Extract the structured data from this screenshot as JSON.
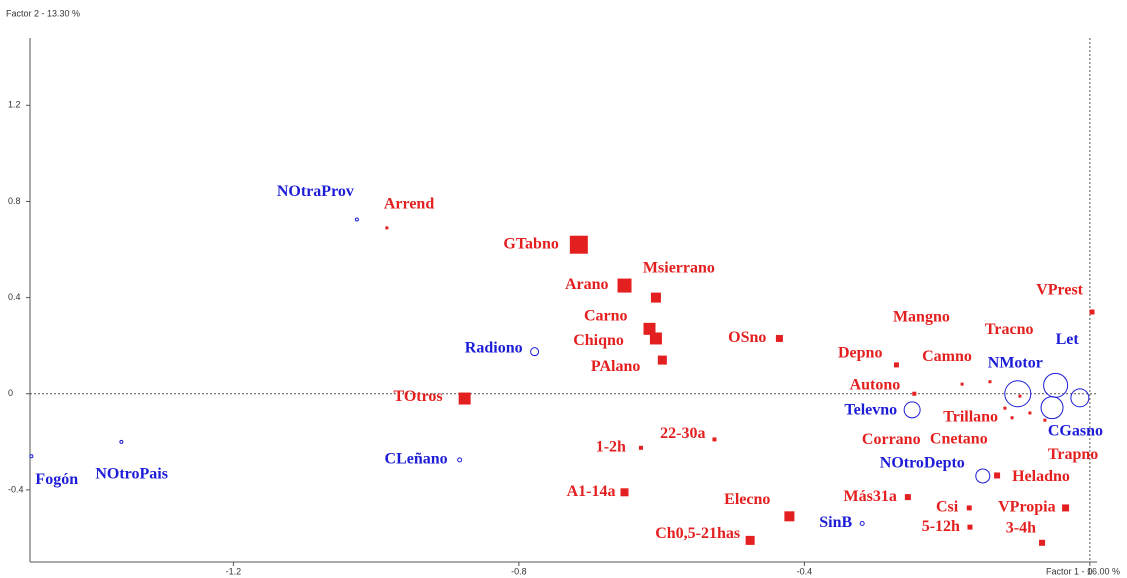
{
  "chart_data": {
    "type": "scatter",
    "xlabel": "Factor 1  -  16.00 %",
    "ylabel": "Factor 2  -  13.30 %",
    "xlim": [
      -1.485,
      0.01
    ],
    "ylim": [
      -0.7,
      1.48
    ],
    "xticks": [
      -1.2,
      -0.8,
      -0.4,
      0
    ],
    "yticks": [
      1.2,
      0.8,
      0.4,
      0,
      -0.4
    ],
    "series": [
      {
        "color": "#e41f1f",
        "marker": "square",
        "labels": [
          "Arrend",
          "GTabno",
          "Arano",
          "Msierrano",
          "Carno",
          "Chiqno",
          "PAlano",
          "OSno",
          "TOtros",
          "Depno",
          "Mangno",
          "Camno",
          "Tracno",
          "Trillano",
          "Cnetano",
          "Autono",
          "VPrest",
          "Corrano",
          "Trapno",
          "Heladno",
          "22-30a",
          "1-2h",
          "A1-14a",
          "Más31a",
          "Csi",
          "VPropia",
          "5-12h",
          "3-4h",
          "Elecno",
          "Ch0,5-21has"
        ],
        "x": [
          -0.985,
          -0.716,
          -0.652,
          -0.608,
          -0.617,
          -0.608,
          -0.599,
          -0.435,
          -0.876,
          -0.271,
          -0.14,
          -0.179,
          -0.119,
          -0.109,
          -0.084,
          -0.246,
          0.003,
          -0.098,
          -0.063,
          -0.13,
          -0.526,
          -0.629,
          -0.652,
          -0.255,
          -0.169,
          -0.034,
          -0.168,
          -0.067,
          -0.421,
          -0.476
        ],
        "values": [
          0.69,
          0.62,
          0.45,
          0.4,
          0.27,
          0.23,
          0.14,
          0.23,
          -0.02,
          0.12,
          0.05,
          0.04,
          -0.06,
          -0.1,
          -0.08,
          0.0,
          0.34,
          -0.01,
          -0.11,
          -0.34,
          -0.19,
          -0.225,
          -0.41,
          -0.43,
          -0.475,
          -0.475,
          -0.555,
          -0.62,
          -0.51,
          -0.61
        ],
        "sizes": [
          1.5,
          9,
          7,
          5,
          6,
          6,
          4.5,
          3.5,
          6,
          2.5,
          1.5,
          1.5,
          1.5,
          1.5,
          1.5,
          2,
          2.5,
          1.5,
          1.5,
          3,
          2,
          2,
          4,
          3,
          2.5,
          3.5,
          2.5,
          3,
          5,
          4.5
        ]
      },
      {
        "color": "#1d1dd8",
        "marker": "circle",
        "labels": [
          "NOtraProv",
          "Radiono",
          "NMotor",
          "Let",
          null,
          "CGasno",
          "Televno",
          "NOtroDepto",
          "SinB",
          "CLeñano",
          "Fogón",
          "NOtroPais"
        ],
        "x": [
          -1.027,
          -0.778,
          -0.101,
          -0.048,
          -0.053,
          -0.014,
          -0.249,
          -0.15,
          -0.319,
          -0.883,
          -1.483,
          -1.357
        ],
        "values": [
          0.725,
          0.175,
          0.0,
          0.035,
          -0.058,
          -0.017,
          -0.067,
          -0.342,
          -0.54,
          -0.275,
          -0.26,
          -0.2
        ],
        "sizes": [
          1.5,
          4,
          13,
          12,
          11,
          9,
          8,
          7,
          2,
          2,
          1.5,
          1.5
        ]
      }
    ]
  }
}
